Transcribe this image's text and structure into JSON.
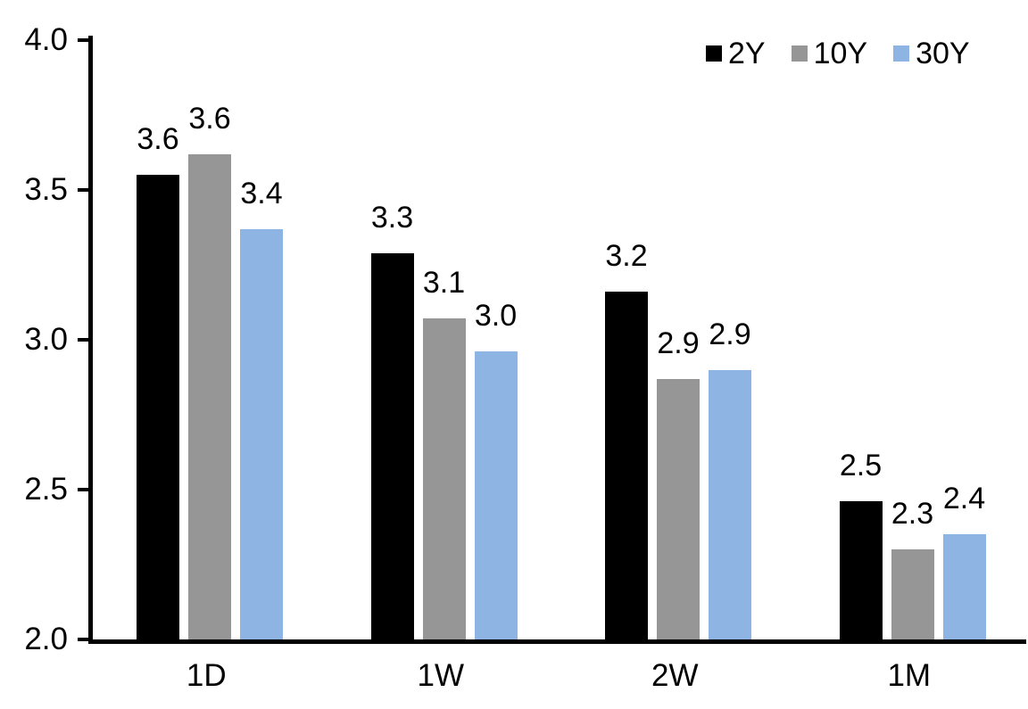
{
  "chart_data": {
    "type": "bar",
    "title": "",
    "xlabel": "",
    "ylabel": "",
    "categories": [
      "1D",
      "1W",
      "2W",
      "1M"
    ],
    "series": [
      {
        "name": "2Y",
        "color": "#000000",
        "values": [
          3.55,
          3.29,
          3.16,
          2.46
        ],
        "labels": [
          "3.6",
          "3.3",
          "3.2",
          "2.5"
        ]
      },
      {
        "name": "10Y",
        "color": "#969696",
        "values": [
          3.62,
          3.07,
          2.87,
          2.3
        ],
        "labels": [
          "3.6",
          "3.1",
          "2.9",
          "2.3"
        ]
      },
      {
        "name": "30Y",
        "color": "#8DB4E2",
        "values": [
          3.37,
          2.96,
          2.9,
          2.35
        ],
        "labels": [
          "3.4",
          "3.0",
          "2.9",
          "2.4"
        ]
      }
    ],
    "ylim": [
      2.0,
      4.0
    ],
    "yticks": [
      {
        "value": 4.0,
        "label": "4.0"
      },
      {
        "value": 3.5,
        "label": "3.5"
      },
      {
        "value": 3.0,
        "label": "3.0"
      },
      {
        "value": 2.5,
        "label": "2.5"
      },
      {
        "value": 2.0,
        "label": "2.0"
      }
    ],
    "legend": {
      "position": "top-right",
      "entries": [
        "2Y",
        "10Y",
        "30Y"
      ]
    },
    "grid": false,
    "axis_color": "#000000",
    "background_color": "#ffffff"
  }
}
